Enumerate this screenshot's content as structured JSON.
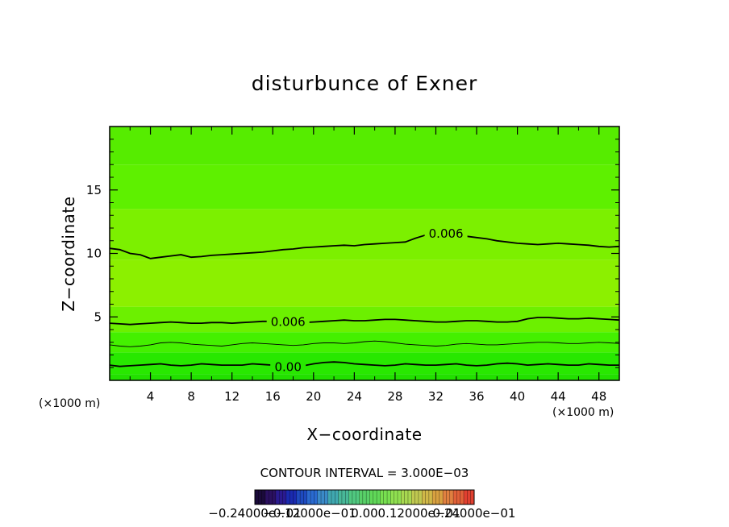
{
  "chart_data": {
    "type": "contour",
    "title": "disturbunce of Exner",
    "xlabel": "X−coordinate",
    "ylabel": "Z−coordinate",
    "x_unit": "(×1000 m)",
    "y_unit": "(×1000 m)",
    "xlim": [
      0,
      50
    ],
    "ylim": [
      0,
      20
    ],
    "xticks": [
      "4",
      "8",
      "12",
      "16",
      "20",
      "24",
      "28",
      "32",
      "36",
      "40",
      "44",
      "48"
    ],
    "xtick_values": [
      4,
      8,
      12,
      16,
      20,
      24,
      28,
      32,
      36,
      40,
      44,
      48
    ],
    "yticks": [
      "5",
      "10",
      "15"
    ],
    "ytick_values": [
      5,
      10,
      15
    ],
    "contour_interval_text": "CONTOUR INTERVAL = 3.000E−03",
    "contour_interval": 0.003,
    "contours": [
      {
        "label": "0.00",
        "label_x": 17.5,
        "z": [
          1.2,
          1.1,
          1.15,
          1.2,
          1.25,
          1.3,
          1.2,
          1.15,
          1.2,
          1.3,
          1.25,
          1.2,
          1.2,
          1.2,
          1.3,
          1.25,
          1.2,
          1.1,
          1.05,
          1.15,
          1.3,
          1.4,
          1.45,
          1.4,
          1.3,
          1.25,
          1.2,
          1.15,
          1.2,
          1.3,
          1.25,
          1.2,
          1.2,
          1.25,
          1.3,
          1.2,
          1.15,
          1.2,
          1.3,
          1.35,
          1.3,
          1.2,
          1.25,
          1.3,
          1.25,
          1.2,
          1.2,
          1.3,
          1.25,
          1.2,
          1.2
        ],
        "major": true
      },
      {
        "label": "",
        "label_x": null,
        "z": [
          2.8,
          2.7,
          2.65,
          2.7,
          2.8,
          2.95,
          3.0,
          2.95,
          2.85,
          2.8,
          2.75,
          2.7,
          2.8,
          2.9,
          2.95,
          2.9,
          2.85,
          2.8,
          2.75,
          2.8,
          2.9,
          2.95,
          2.95,
          2.9,
          2.95,
          3.05,
          3.1,
          3.05,
          2.95,
          2.85,
          2.8,
          2.75,
          2.7,
          2.75,
          2.85,
          2.9,
          2.85,
          2.8,
          2.8,
          2.85,
          2.9,
          2.95,
          3.0,
          3.0,
          2.95,
          2.9,
          2.9,
          2.95,
          3.0,
          2.95,
          2.9
        ],
        "major": false
      },
      {
        "label": "0.006",
        "label_x": 17.5,
        "z": [
          4.5,
          4.45,
          4.4,
          4.45,
          4.5,
          4.55,
          4.6,
          4.55,
          4.5,
          4.5,
          4.55,
          4.55,
          4.5,
          4.55,
          4.6,
          4.65,
          4.65,
          4.6,
          4.6,
          4.55,
          4.6,
          4.65,
          4.7,
          4.75,
          4.7,
          4.7,
          4.75,
          4.8,
          4.8,
          4.75,
          4.7,
          4.65,
          4.6,
          4.6,
          4.65,
          4.7,
          4.7,
          4.65,
          4.6,
          4.6,
          4.65,
          4.85,
          4.95,
          4.95,
          4.9,
          4.85,
          4.85,
          4.9,
          4.85,
          4.8,
          4.75
        ],
        "major": true
      },
      {
        "label": "0.006",
        "label_x": 33,
        "z": [
          10.4,
          10.3,
          10.0,
          9.9,
          9.6,
          9.7,
          9.8,
          9.9,
          9.7,
          9.75,
          9.85,
          9.9,
          9.95,
          10.0,
          10.05,
          10.1,
          10.2,
          10.3,
          10.35,
          10.45,
          10.5,
          10.55,
          10.6,
          10.65,
          10.6,
          10.7,
          10.75,
          10.8,
          10.85,
          10.9,
          11.2,
          11.45,
          11.6,
          11.55,
          11.45,
          11.35,
          11.25,
          11.15,
          11.0,
          10.9,
          10.8,
          10.75,
          10.7,
          10.75,
          10.8,
          10.75,
          10.7,
          10.65,
          10.55,
          10.5,
          10.55
        ],
        "major": true
      }
    ],
    "colorbar": {
      "ticks": [
        "−0.24000e−01",
        "−0.12000e−01",
        "0.00",
        "0.12000e−01",
        "0.24000e−01"
      ],
      "colors": [
        "#1a0a3a",
        "#2a1060",
        "#2a1a90",
        "#1a2ab0",
        "#1e4ac0",
        "#2a6ad0",
        "#3a8ac8",
        "#40a8b0",
        "#48b898",
        "#50c880",
        "#58d068",
        "#60d858",
        "#78e050",
        "#90e050",
        "#a8d850",
        "#c0c850",
        "#d0b848",
        "#d8a040",
        "#e08040",
        "#e06038",
        "#e04030"
      ]
    },
    "field_bands": [
      {
        "z": [
          0,
          0.5
        ],
        "color": "#22e000"
      },
      {
        "z": [
          0.5,
          2.2
        ],
        "color": "#28e800"
      },
      {
        "z": [
          2.2,
          3.8
        ],
        "color": "#44f000"
      },
      {
        "z": [
          3.8,
          5.8
        ],
        "color": "#6cf000"
      },
      {
        "z": [
          5.8,
          9.5
        ],
        "color": "#8cf000"
      },
      {
        "z": [
          9.5,
          13.5
        ],
        "color": "#7cf000"
      },
      {
        "z": [
          13.5,
          17
        ],
        "color": "#5ef000"
      },
      {
        "z": [
          17,
          20
        ],
        "color": "#56ec00"
      }
    ]
  }
}
